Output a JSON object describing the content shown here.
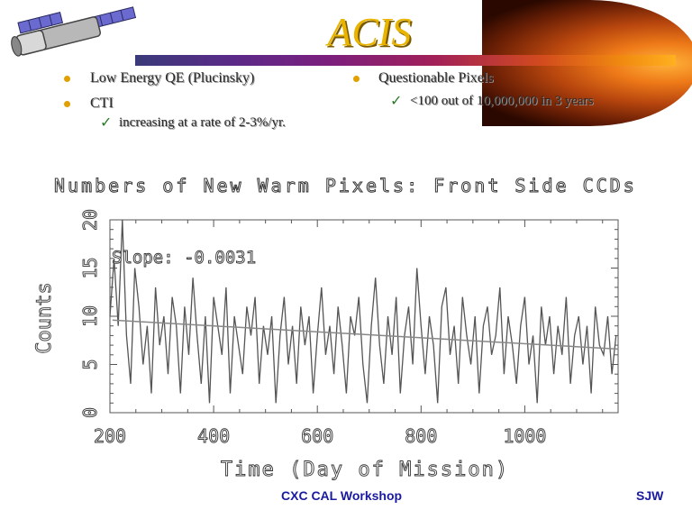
{
  "header": {
    "title": "ACIS"
  },
  "bullets": {
    "left": [
      {
        "text": "Low Energy QE (Plucinsky)"
      },
      {
        "text": "CTI",
        "sub": "increasing at a rate of 2-3%/yr."
      }
    ],
    "right": [
      {
        "text": "Questionable Pixels",
        "sub": "<100 out of 10,000,000 in 3 years"
      }
    ]
  },
  "footer": {
    "center": "CXC CAL Workshop",
    "right": "SJW"
  },
  "colors": {
    "title": "#e8b400",
    "bullet_dot": "#e0a000",
    "check": "#2a7a2a",
    "footer": "#1a1aa0",
    "series": "#555555"
  },
  "icons": [
    "satellite-icon",
    "comet-graphic",
    "check-icon",
    "bullet-dot-icon"
  ],
  "chart_data": {
    "type": "line",
    "title": "Numbers of New Warm Pixels: Front Side CCDs",
    "xlabel": "Time (Day of Mission)",
    "ylabel": "Counts",
    "xlim": [
      200,
      1180
    ],
    "ylim": [
      0,
      20
    ],
    "xticks": [
      200,
      400,
      600,
      800,
      1000
    ],
    "yticks": [
      0,
      5,
      10,
      15,
      20
    ],
    "grid": false,
    "annotation": "Slope: -0.0031",
    "series": [
      {
        "x": [
          200,
          208,
          216,
          224,
          232,
          240,
          248,
          256,
          264,
          272,
          280,
          288,
          296,
          304,
          312,
          320,
          328,
          336,
          344,
          352,
          360,
          368,
          376,
          384,
          392,
          400,
          408,
          416,
          424,
          432,
          440,
          448,
          456,
          464,
          472,
          480,
          488,
          496,
          504,
          512,
          520,
          528,
          536,
          544,
          552,
          560,
          568,
          576,
          584,
          592,
          600,
          608,
          616,
          624,
          632,
          640,
          648,
          656,
          664,
          672,
          680,
          688,
          696,
          704,
          712,
          720,
          728,
          736,
          744,
          752,
          760,
          768,
          776,
          784,
          792,
          800,
          808,
          816,
          824,
          832,
          840,
          848,
          856,
          864,
          872,
          880,
          888,
          896,
          904,
          912,
          920,
          928,
          936,
          944,
          952,
          960,
          968,
          976,
          984,
          992,
          1000,
          1008,
          1016,
          1024,
          1032,
          1040,
          1048,
          1056,
          1064,
          1072,
          1080,
          1088,
          1096,
          1104,
          1112,
          1120,
          1128,
          1136,
          1144,
          1152,
          1160,
          1168,
          1176
        ],
        "values": [
          10,
          16,
          9,
          20,
          8,
          3,
          15,
          11,
          5,
          9,
          2,
          13,
          7,
          10,
          4,
          12,
          9,
          2,
          11,
          6,
          14,
          8,
          3,
          10,
          1,
          12,
          9,
          6,
          13,
          2,
          10,
          7,
          4,
          11,
          8,
          12,
          3,
          9,
          6,
          10,
          1,
          8,
          12,
          5,
          9,
          3,
          11,
          7,
          10,
          2,
          8,
          13,
          6,
          9,
          4,
          11,
          7,
          2,
          10,
          8,
          12,
          5,
          1,
          9,
          14,
          7,
          3,
          10,
          6,
          12,
          2,
          8,
          11,
          5,
          15,
          9,
          4,
          10,
          7,
          1,
          11,
          13,
          6,
          9,
          3,
          12,
          8,
          5,
          10,
          2,
          9,
          11,
          6,
          8,
          13,
          4,
          10,
          7,
          3,
          9,
          12,
          5,
          8,
          1,
          11,
          7,
          10,
          4,
          9,
          6,
          12,
          3,
          8,
          10,
          5,
          9,
          2,
          11,
          7,
          6,
          10,
          4,
          8
        ]
      },
      {
        "name": "fit",
        "x": [
          205,
          1180
        ],
        "values": [
          9.6,
          6.6
        ]
      }
    ]
  }
}
